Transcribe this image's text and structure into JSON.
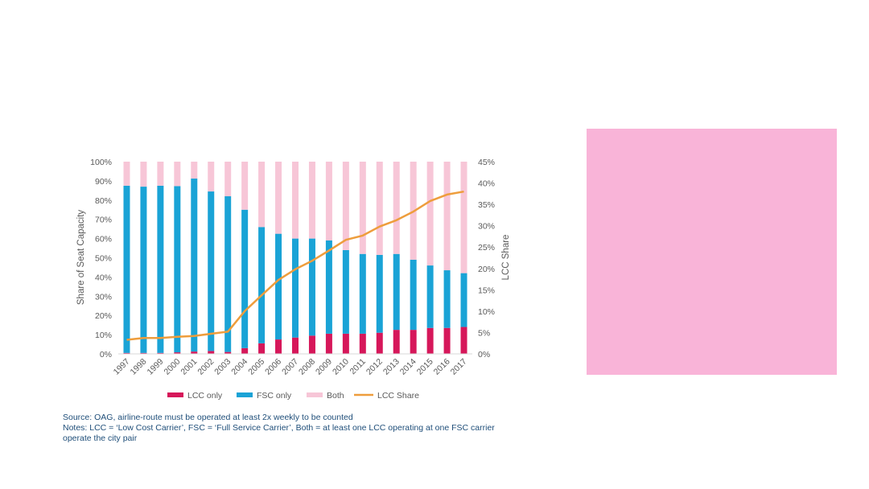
{
  "colors": {
    "lcc_only": "#d6175a",
    "fsc_only": "#1aa3d6",
    "both": "#f7c6d7",
    "lcc_share": "#ee9d3c",
    "text": "#595959",
    "notes": "#1f4e79",
    "pink_box": "#f9b4d8"
  },
  "notes": {
    "source": "Source: OAG, airline-route must be operated at least 2x weekly to be counted",
    "line1": "Notes: LCC = ‘Low Cost Carrier’, FSC = ‘Full Service Carrier’, Both = at least one LCC operating at one FSC carrier",
    "line2": "operate the city pair"
  },
  "chart_data": {
    "type": "bar",
    "stacked": true,
    "categories": [
      "1997",
      "1998",
      "1999",
      "2000",
      "2001",
      "2002",
      "2003",
      "2004",
      "2005",
      "2006",
      "2007",
      "2008",
      "2009",
      "2010",
      "2011",
      "2012",
      "2013",
      "2014",
      "2015",
      "2016",
      "2017"
    ],
    "series": [
      {
        "name": "LCC only",
        "axis": "left",
        "values": [
          0.5,
          0.5,
          0.5,
          0.8,
          1.2,
          1.5,
          1.0,
          3.0,
          5.5,
          7.5,
          8.5,
          9.5,
          10.5,
          10.5,
          10.5,
          11,
          12.5,
          12.5,
          13.5,
          13.5,
          14
        ]
      },
      {
        "name": "FSC only",
        "axis": "left",
        "values": [
          87,
          86.5,
          87,
          86.5,
          90,
          83,
          81,
          72,
          60.5,
          55,
          51.5,
          50.5,
          48.5,
          43.5,
          41.5,
          40.5,
          39.5,
          36.5,
          32.5,
          30,
          28
        ]
      },
      {
        "name": "Both",
        "axis": "left",
        "values": [
          12.5,
          13,
          12.5,
          12.7,
          8.8,
          15.5,
          18,
          25,
          34,
          37.5,
          40,
          40,
          41,
          46,
          48,
          48.5,
          48,
          51,
          54,
          56.5,
          58
        ]
      },
      {
        "name": "LCC Share",
        "axis": "right",
        "type": "line",
        "values": [
          3.3,
          3.7,
          3.7,
          4.0,
          4.2,
          4.7,
          5.2,
          10.0,
          13.7,
          17.3,
          19.8,
          21.8,
          24.2,
          26.7,
          27.7,
          29.8,
          31.3,
          33.3,
          35.8,
          37.3,
          38.0
        ]
      }
    ],
    "ylabel": "Share of Seat Capacity",
    "y2label": "LCC Share",
    "ylim": [
      0,
      100
    ],
    "y2lim": [
      0,
      45
    ],
    "yticks": [
      "0%",
      "10%",
      "20%",
      "30%",
      "40%",
      "50%",
      "60%",
      "70%",
      "80%",
      "90%",
      "100%"
    ],
    "y2ticks": [
      "0%",
      "5%",
      "10%",
      "15%",
      "20%",
      "25%",
      "30%",
      "35%",
      "40%",
      "45%"
    ],
    "legend_position": "bottom"
  }
}
